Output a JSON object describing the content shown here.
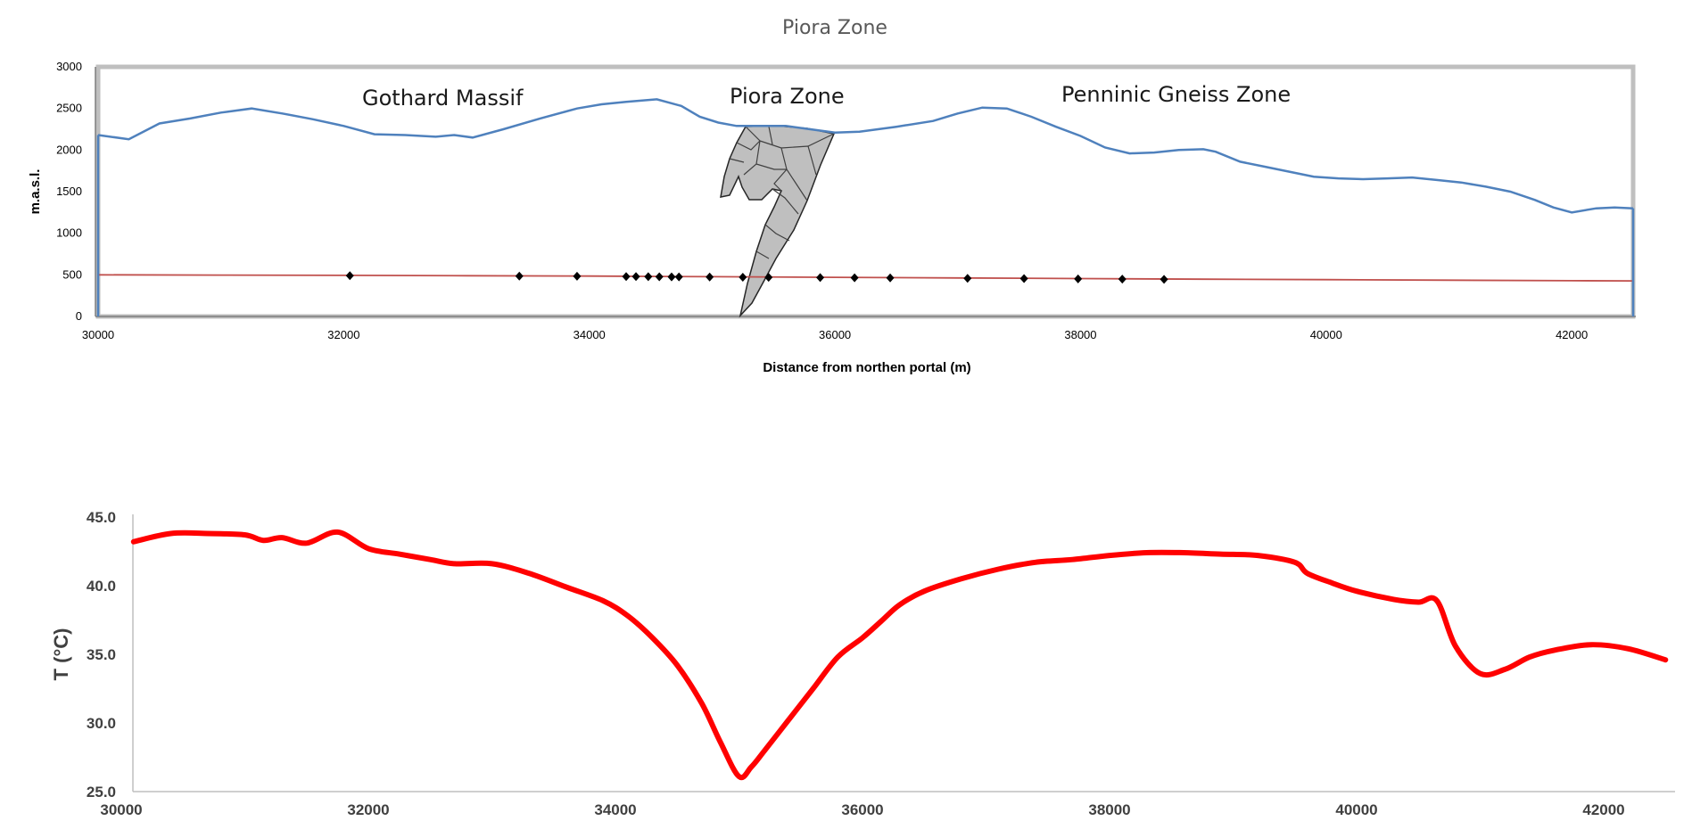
{
  "chart_data": [
    {
      "type": "line",
      "title": "Piora Zone",
      "xlabel": "Distance from northen portal (m)",
      "ylabel": "m.a.s.l.",
      "xlim": [
        30000,
        42500
      ],
      "ylim": [
        0,
        3000
      ],
      "x_ticks": [
        30000,
        32000,
        34000,
        36000,
        38000,
        40000,
        42000
      ],
      "y_ticks": [
        0,
        500,
        1000,
        1500,
        2000,
        2500,
        3000
      ],
      "annotations": [
        "Gothard Massif",
        "Piora Zone",
        "Penninic Gneiss Zone"
      ],
      "colors": {
        "surface": "#4f81bd",
        "tunnel": "#c0504d",
        "markers": "#000000",
        "zone_fill": "#bfbfbf"
      },
      "series": [
        {
          "x": [
            30000,
            30250,
            30500,
            30750,
            31000,
            31250,
            31500,
            31750,
            32000,
            32250,
            32500,
            32750,
            32900,
            33050,
            33300,
            33600,
            33900,
            34100,
            34300,
            34550,
            34750,
            34900,
            35050,
            35200,
            35400,
            35600,
            35800,
            36000,
            36200,
            36500,
            36800,
            37000,
            37200,
            37400,
            37600,
            37800,
            38000,
            38200,
            38400,
            38600,
            38800,
            39000,
            39100,
            39300,
            39500,
            39700,
            39900,
            40100,
            40300,
            40500,
            40700,
            40900,
            41100,
            41300,
            41500,
            41700,
            41850,
            42000,
            42200,
            42350,
            42500
          ],
          "values": [
            2180,
            2130,
            2320,
            2380,
            2450,
            2500,
            2440,
            2370,
            2290,
            2190,
            2180,
            2160,
            2180,
            2150,
            2250,
            2380,
            2500,
            2550,
            2580,
            2610,
            2530,
            2400,
            2330,
            2290,
            2290,
            2290,
            2250,
            2210,
            2220,
            2280,
            2350,
            2440,
            2510,
            2500,
            2400,
            2280,
            2170,
            2030,
            1960,
            1970,
            2000,
            2010,
            1980,
            1860,
            1800,
            1740,
            1680,
            1660,
            1650,
            1660,
            1670,
            1640,
            1610,
            1560,
            1500,
            1400,
            1310,
            1250,
            1300,
            1310,
            1300
          ]
        },
        {
          "x": [
            30000,
            31000,
            32000,
            33000,
            34000,
            35000,
            36000,
            37000,
            38000,
            39000,
            40000,
            41000,
            42000,
            42500
          ],
          "values": [
            500,
            497,
            494,
            490,
            485,
            478,
            470,
            463,
            455,
            448,
            442,
            436,
            430,
            427
          ]
        },
        {
          "type": "scatter",
          "x": [
            32050,
            33430,
            33900,
            34300,
            34380,
            34480,
            34570,
            34670,
            34730,
            34980,
            35250,
            35460,
            35880,
            36160,
            36450,
            37080,
            37540,
            37980,
            38340,
            38680
          ],
          "values": [
            490,
            485,
            483,
            480,
            479,
            478,
            477,
            476,
            475,
            474,
            472,
            470,
            467,
            465,
            463,
            458,
            455,
            451,
            449,
            446
          ]
        }
      ]
    },
    {
      "type": "line",
      "xlabel": "",
      "ylabel": "T (°C)",
      "xlim": [
        30000,
        42500
      ],
      "ylim": [
        25,
        45
      ],
      "x_ticks": [
        30000,
        32000,
        34000,
        36000,
        38000,
        40000,
        42000
      ],
      "y_ticks": [
        25,
        30,
        35,
        40,
        45
      ],
      "y_tick_labels": [
        "25.0",
        "30.0",
        "35.0",
        "40.0",
        "45.0"
      ],
      "colors": {
        "line": "#ff0000"
      },
      "series": [
        {
          "x": [
            30100,
            30400,
            30700,
            31000,
            31150,
            31300,
            31500,
            31750,
            32000,
            32250,
            32500,
            32700,
            33000,
            33300,
            33600,
            33900,
            34100,
            34300,
            34500,
            34700,
            34850,
            35000,
            35100,
            35200,
            35400,
            35600,
            35800,
            36000,
            36150,
            36300,
            36500,
            36800,
            37100,
            37400,
            37700,
            38000,
            38300,
            38600,
            38900,
            39200,
            39500,
            39600,
            39800,
            40000,
            40300,
            40500,
            40650,
            40800,
            41000,
            41200,
            41400,
            41600,
            41900,
            42200,
            42500
          ],
          "values": [
            43.2,
            43.8,
            43.8,
            43.7,
            43.3,
            43.5,
            43.1,
            43.9,
            42.7,
            42.3,
            41.9,
            41.6,
            41.6,
            40.9,
            39.9,
            38.9,
            37.8,
            36.2,
            34.2,
            31.4,
            28.6,
            26.1,
            26.8,
            27.9,
            30.2,
            32.5,
            34.8,
            36.2,
            37.4,
            38.6,
            39.6,
            40.5,
            41.2,
            41.7,
            41.9,
            42.2,
            42.4,
            42.4,
            42.3,
            42.2,
            41.7,
            40.9,
            40.2,
            39.6,
            39.0,
            38.8,
            38.9,
            35.6,
            33.6,
            33.9,
            34.8,
            35.3,
            35.7,
            35.4,
            34.6
          ]
        }
      ]
    }
  ]
}
